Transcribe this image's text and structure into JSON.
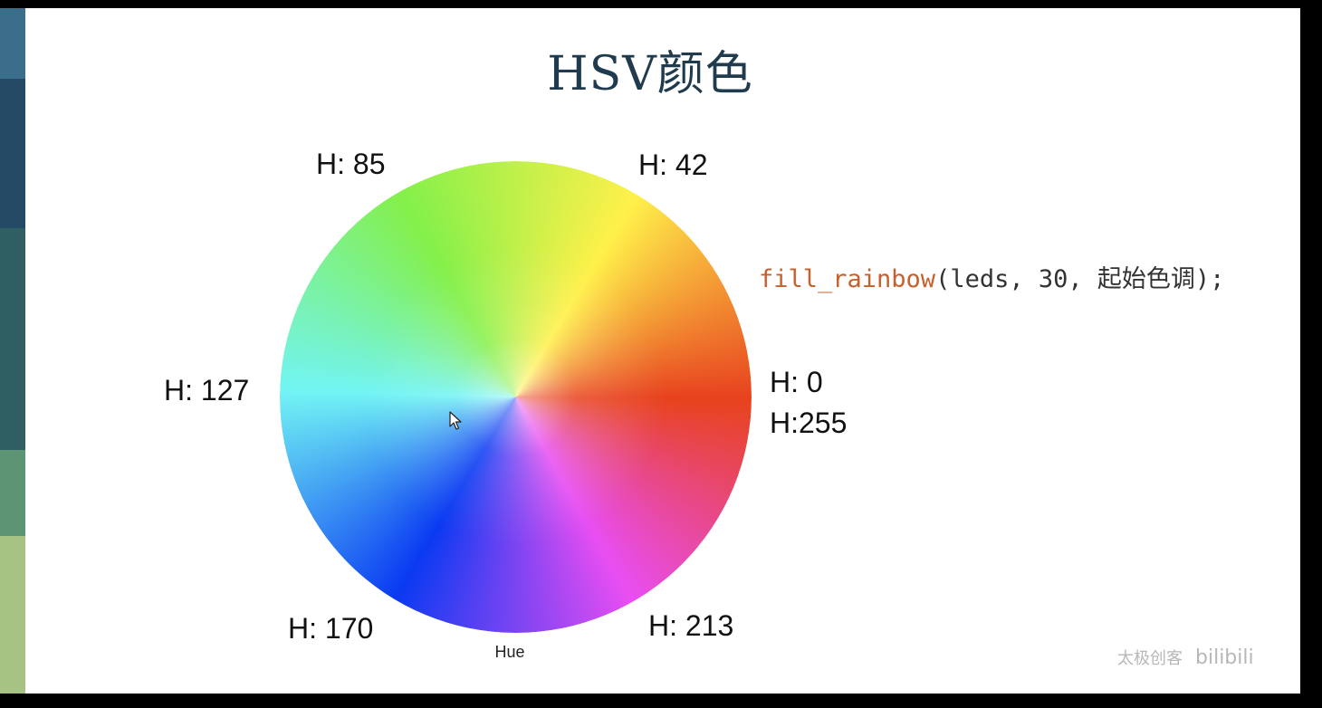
{
  "slide": {
    "title": "HSV颜色",
    "side_strip_colors": [
      "#3a6e8a",
      "#244a66",
      "#2f5f63",
      "#5d9473",
      "#a6c383"
    ]
  },
  "wheel": {
    "hue_labels": {
      "h0": "H: 0",
      "h255": "H:255",
      "h42": "H: 42",
      "h85": "H: 85",
      "h127": "H: 127",
      "h170": "H: 170",
      "h213": "H: 213"
    },
    "axis_name": "Hue",
    "color_stops": [
      {
        "hue": 0,
        "color": "#e8431f"
      },
      {
        "hue": 42,
        "color": "#fff04a"
      },
      {
        "hue": 85,
        "color": "#84f04a"
      },
      {
        "hue": 127,
        "color": "#72f4f4"
      },
      {
        "hue": 170,
        "color": "#0a3af2"
      },
      {
        "hue": 213,
        "color": "#e84ef2"
      },
      {
        "hue": 255,
        "color": "#e8431f"
      }
    ]
  },
  "code": {
    "function": "fill_rainbow",
    "args": "(leds, 30, 起始色调);"
  },
  "watermark": {
    "text": "太极创客",
    "logo": "bilibili"
  },
  "icons": {
    "cursor": "mouse-pointer-icon"
  }
}
